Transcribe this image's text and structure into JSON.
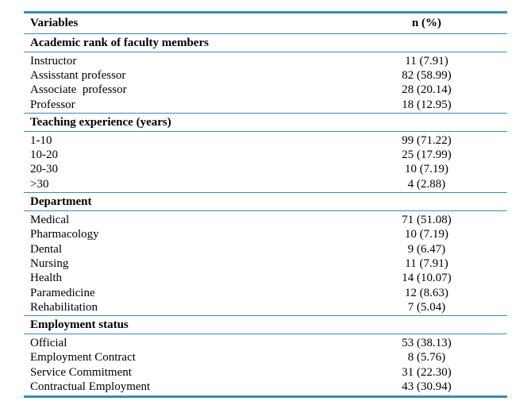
{
  "header": {
    "variables": "Variables",
    "n_percent": "n (%)"
  },
  "sections": [
    {
      "title": "Academic rank of faculty members",
      "rows": [
        {
          "label": "Instructor",
          "value": "11 (7.91)"
        },
        {
          "label": "Assisstant professor",
          "value": "82 (58.99)"
        },
        {
          "label": "Associate  professor",
          "value": "28 (20.14)"
        },
        {
          "label": "Professor",
          "value": "18 (12.95)"
        }
      ]
    },
    {
      "title": "Teaching experience (years)",
      "rows": [
        {
          "label": "1-10",
          "value": "99 (71.22)"
        },
        {
          "label": "10-20",
          "value": "25 (17.99)"
        },
        {
          "label": "20-30",
          "value": "10 (7.19)"
        },
        {
          "label": ">30",
          "value": "4 (2.88)"
        }
      ]
    },
    {
      "title": "Department",
      "rows": [
        {
          "label": "Medical",
          "value": "71 (51.08)"
        },
        {
          "label": "Pharmacology",
          "value": "10 (7.19)"
        },
        {
          "label": "Dental",
          "value": "9 (6.47)"
        },
        {
          "label": "Nursing",
          "value": "11 (7.91)"
        },
        {
          "label": "Health",
          "value": "14 (10.07)"
        },
        {
          "label": "Paramedicine",
          "value": "12 (8.63)"
        },
        {
          "label": "Rehabilitation",
          "value": "7 (5.04)"
        }
      ]
    },
    {
      "title": "Employment status",
      "rows": [
        {
          "label": "Official",
          "value": "53 (38.13)"
        },
        {
          "label": "Employment Contract",
          "value": "8 (5.76)"
        },
        {
          "label": "Service Commitment",
          "value": "31 (22.30)"
        },
        {
          "label": "Contractual Employment",
          "value": "43 (30.94)"
        }
      ]
    }
  ],
  "colors": {
    "rule": "#3d8bb0"
  }
}
